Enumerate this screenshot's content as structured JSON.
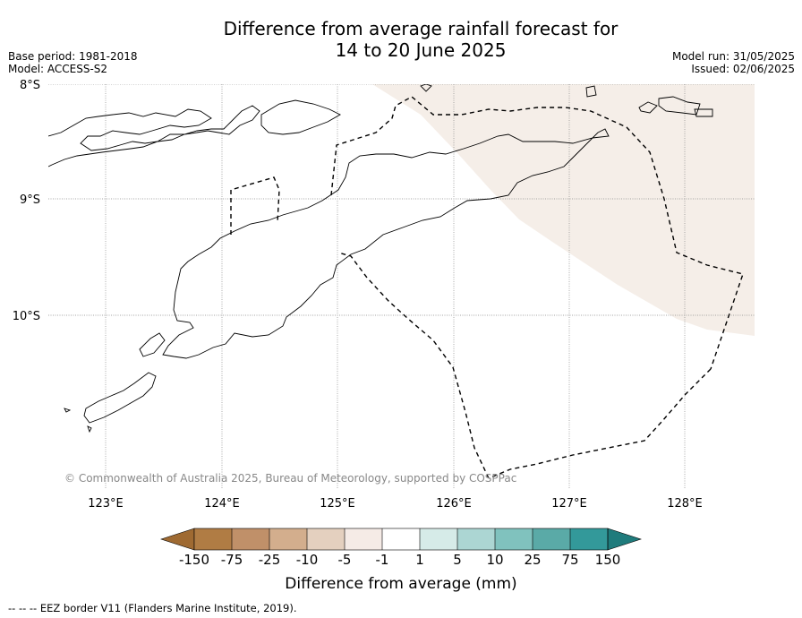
{
  "title": {
    "line1": "Difference from average rainfall forecast for",
    "line2": "14 to 20 June 2025"
  },
  "meta": {
    "base_period": "Base period: 1981-2018",
    "model": "Model: ACCESS-S2",
    "model_run": "Model run: 31/05/2025",
    "issued": "Issued: 02/06/2025"
  },
  "map": {
    "lat_labels": [
      "8°S",
      "9°S",
      "10°S"
    ],
    "lon_labels": [
      "123°E",
      "124°E",
      "125°E",
      "126°E",
      "127°E",
      "128°E"
    ],
    "copyright": "© Commonwealth of Australia 2025, Bureau of Meteorology, supported by COSPPac",
    "region_fill": "#f5eee8"
  },
  "colorbar": {
    "title": "Difference from average (mm)",
    "ticks": [
      "-150",
      "-75",
      "-25",
      "-10",
      "-5",
      "-1",
      "1",
      "5",
      "10",
      "25",
      "75",
      "150"
    ],
    "colors": [
      "#9f6a32",
      "#b07c44",
      "#c09069",
      "#d3ae8d",
      "#e4d0bf",
      "#f5ebe6",
      "#ffffff",
      "#d6ebe8",
      "#acd6d3",
      "#80c2be",
      "#5aaaa7",
      "#33999a",
      "#1f7b7c"
    ]
  },
  "footer": "--  --  -- EEZ border V11 (Flanders Marine Institute, 2019)."
}
